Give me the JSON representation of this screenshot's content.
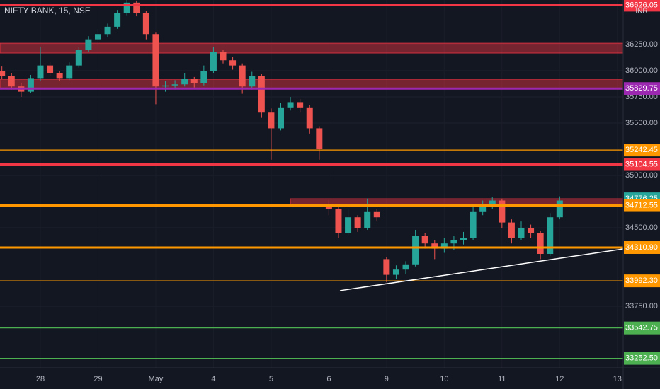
{
  "chart_data": {
    "type": "candlestick",
    "title": "NIFTY BANK, 15, NSE",
    "currency": "INR",
    "categories": [
      null,
      null,
      null,
      null,
      "28",
      null,
      null,
      null,
      null,
      null,
      "29",
      null,
      null,
      null,
      null,
      null,
      "May",
      null,
      null,
      null,
      null,
      null,
      "4",
      null,
      null,
      null,
      null,
      null,
      "5",
      null,
      null,
      null,
      null,
      null,
      "6",
      null,
      null,
      null,
      null,
      null,
      "9",
      null,
      null,
      null,
      null,
      null,
      "10",
      null,
      null,
      null,
      null,
      null,
      "11",
      null,
      null,
      null,
      null,
      null,
      "12",
      null,
      null,
      null,
      null,
      null,
      "13"
    ],
    "open": [
      36000,
      35950,
      35850,
      35800,
      35930,
      36050,
      35980,
      35930,
      36050,
      36200,
      36300,
      36350,
      36420,
      36550,
      36650,
      36550,
      36350,
      35850,
      35860,
      35870,
      35920,
      35880,
      36000,
      36180,
      36100,
      36050,
      35850,
      35950,
      35600,
      35450,
      35650,
      35700,
      35650,
      35450,
      34720,
      34680,
      34450,
      34600,
      34500,
      34650,
      34200,
      34050,
      34100,
      34150,
      34420,
      34350,
      34300,
      34350,
      34380,
      34400,
      34650,
      34700,
      34760,
      34550,
      34400,
      34500,
      34450,
      34250,
      34600,
      null,
      null,
      null,
      null,
      null,
      null
    ],
    "high": [
      36040,
      35980,
      35880,
      35960,
      36230,
      36080,
      36000,
      36080,
      36230,
      36330,
      36400,
      36450,
      36580,
      36680,
      36670,
      36570,
      36370,
      35900,
      35910,
      35980,
      35940,
      36050,
      36230,
      36200,
      36130,
      36070,
      35990,
      35970,
      35640,
      35690,
      35750,
      35730,
      35670,
      35470,
      34760,
      34700,
      34680,
      34620,
      34780,
      34680,
      34220,
      34140,
      34180,
      34480,
      34450,
      34380,
      34400,
      34420,
      34460,
      34700,
      34760,
      34790,
      34780,
      34580,
      34560,
      34530,
      34470,
      34640,
      34800,
      null,
      null,
      null,
      null,
      null,
      null
    ],
    "low": [
      35920,
      35820,
      35750,
      35790,
      35900,
      35950,
      35900,
      35910,
      36030,
      36180,
      36250,
      36320,
      36400,
      36530,
      36520,
      36300,
      35680,
      35800,
      35820,
      35850,
      35840,
      35860,
      35980,
      36070,
      36010,
      35780,
      35820,
      35550,
      35150,
      35430,
      35620,
      35600,
      35400,
      35150,
      34620,
      34400,
      34430,
      34460,
      34480,
      34560,
      33980,
      34010,
      34060,
      34130,
      34300,
      34200,
      34260,
      34290,
      34340,
      34380,
      34620,
      34680,
      34500,
      34350,
      34380,
      34400,
      34200,
      34230,
      34580,
      null,
      null,
      null,
      null,
      null,
      null
    ],
    "close": [
      35950,
      35850,
      35800,
      35930,
      36050,
      35980,
      35930,
      36050,
      36200,
      36300,
      36350,
      36420,
      36550,
      36650,
      36550,
      36350,
      35850,
      35860,
      35870,
      35920,
      35880,
      36000,
      36180,
      36100,
      36050,
      35850,
      35950,
      35600,
      35450,
      35650,
      35700,
      35650,
      35450,
      35250,
      34680,
      34450,
      34600,
      34500,
      34650,
      34600,
      34050,
      34100,
      34150,
      34420,
      34350,
      34300,
      34350,
      34380,
      34400,
      34650,
      34700,
      34760,
      34550,
      34400,
      34500,
      34450,
      34250,
      34600,
      34760,
      null,
      null,
      null,
      null,
      null,
      null
    ],
    "up_color": "#26a69a",
    "down_color": "#ef5350",
    "ylim": [
      33162,
      36676
    ],
    "yticks": [
      {
        "value": 33750,
        "label": "33750.00"
      },
      {
        "value": 34500,
        "label": "34500.00"
      },
      {
        "value": 35000,
        "label": "35000.00"
      },
      {
        "value": 35500,
        "label": "35500.00"
      },
      {
        "value": 35750,
        "label": "35750.00"
      },
      {
        "value": 36000,
        "label": "36000.00"
      },
      {
        "value": 36250,
        "label": "36250.00"
      }
    ],
    "zones": [
      {
        "low": 36169,
        "high": 36263,
        "color": "#f23645"
      },
      {
        "low": 35824,
        "high": 35919,
        "color": "#f23645"
      },
      {
        "low": 34716,
        "high": 34777,
        "color": "#f23645"
      }
    ],
    "levels": [
      {
        "value": 36626.05,
        "label": "36626.05",
        "color": "#f23645",
        "style": "thick"
      },
      {
        "value": 35829.75,
        "label": "35829.75",
        "color": "#9c27b0",
        "style": "thick"
      },
      {
        "value": 35242.45,
        "label": "35242.45",
        "color": "#ff9800",
        "style": "thin"
      },
      {
        "value": 35104.55,
        "label": "35104.55",
        "color": "#f23645",
        "style": "thick"
      },
      {
        "value": 34776.25,
        "label": "34776.25",
        "color": "#26a69a",
        "style": "none"
      },
      {
        "value": 34712.55,
        "label": "34712.55",
        "color": "#ff9800",
        "style": "thick"
      },
      {
        "value": 34310.9,
        "label": "34310.90",
        "color": "#ff9800",
        "style": "thick"
      },
      {
        "value": 33992.3,
        "label": "33992.30",
        "color": "#ff9800",
        "style": "thin"
      },
      {
        "value": 33542.75,
        "label": "33542.75",
        "color": "#4caf50",
        "style": "thin"
      },
      {
        "value": 33252.5,
        "label": "33252.50",
        "color": "#4caf50",
        "style": "thin"
      }
    ],
    "trendline": {
      "start": 33899,
      "end": 34297,
      "color": "#ffffff"
    }
  }
}
